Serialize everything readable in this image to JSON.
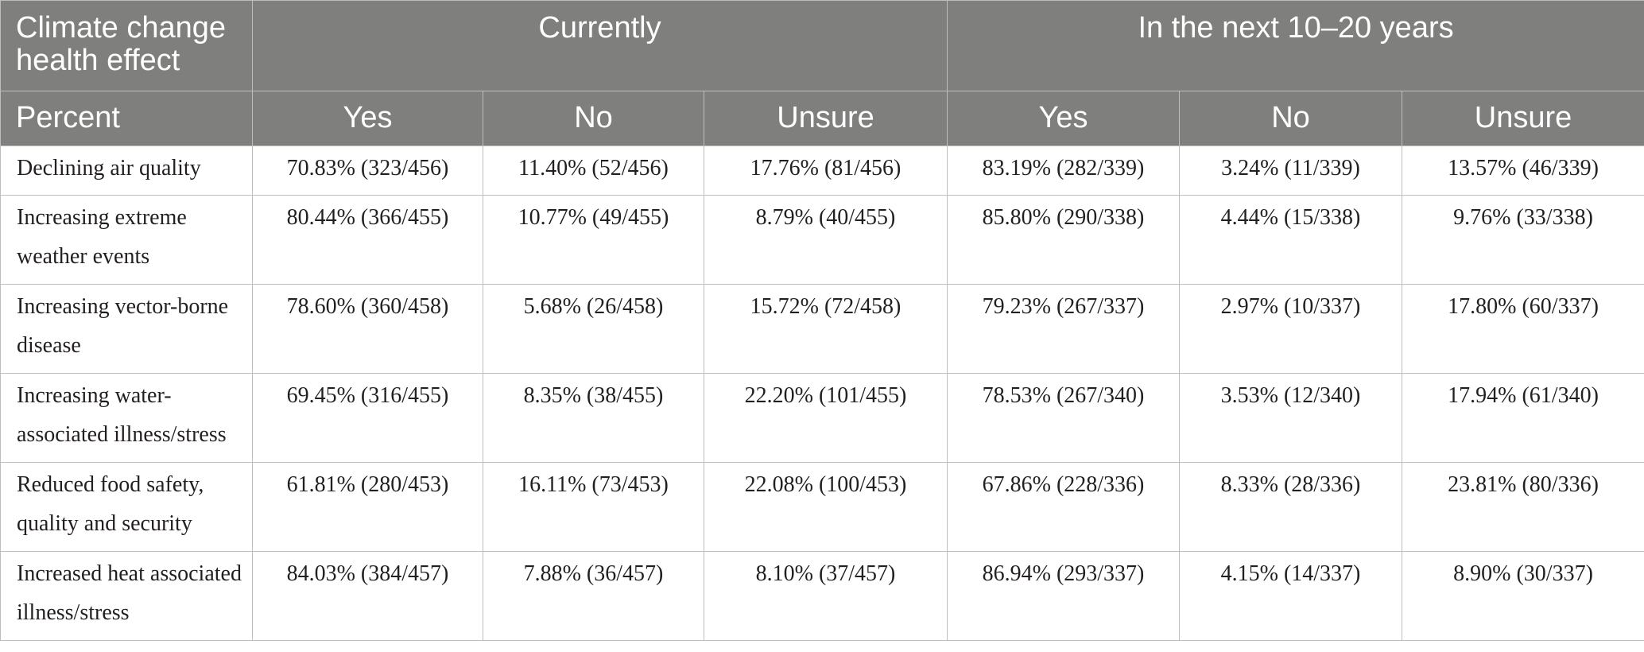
{
  "table": {
    "header_effect": "Climate change health effect",
    "header_percent": "Percent",
    "group_current": "Currently",
    "group_future": "In the next 10–20 years",
    "sub_yes_current": "Yes",
    "sub_no_current": "No",
    "sub_unsure_current": "Unsure",
    "sub_yes_future": "Yes",
    "sub_no_future": "No",
    "sub_unsure_future": "Unsure",
    "rows": [
      {
        "effect": "Declining air quality",
        "current_yes": "70.83% (323/456)",
        "current_no": "11.40% (52/456)",
        "current_unsure": "17.76% (81/456)",
        "future_yes": "83.19% (282/339)",
        "future_no": "3.24% (11/339)",
        "future_unsure": "13.57% (46/339)"
      },
      {
        "effect": "Increasing extreme weather events",
        "current_yes": "80.44% (366/455)",
        "current_no": "10.77% (49/455)",
        "current_unsure": "8.79% (40/455)",
        "future_yes": "85.80% (290/338)",
        "future_no": "4.44% (15/338)",
        "future_unsure": "9.76% (33/338)"
      },
      {
        "effect": "Increasing vector-borne disease",
        "current_yes": "78.60% (360/458)",
        "current_no": "5.68% (26/458)",
        "current_unsure": "15.72% (72/458)",
        "future_yes": "79.23% (267/337)",
        "future_no": "2.97% (10/337)",
        "future_unsure": "17.80% (60/337)"
      },
      {
        "effect": "Increasing water-associated illness/stress",
        "current_yes": "69.45% (316/455)",
        "current_no": "8.35% (38/455)",
        "current_unsure": "22.20% (101/455)",
        "future_yes": "78.53% (267/340)",
        "future_no": "3.53% (12/340)",
        "future_unsure": "17.94% (61/340)"
      },
      {
        "effect": "Reduced food safety, quality and security",
        "current_yes": "61.81% (280/453)",
        "current_no": "16.11% (73/453)",
        "current_unsure": "22.08% (100/453)",
        "future_yes": "67.86% (228/336)",
        "future_no": "8.33% (28/336)",
        "future_unsure": "23.81% (80/336)"
      },
      {
        "effect": "Increased heat associated illness/stress",
        "current_yes": "84.03% (384/457)",
        "current_no": "7.88% (36/457)",
        "current_unsure": "8.10% (37/457)",
        "future_yes": "86.94% (293/337)",
        "future_no": "4.15% (14/337)",
        "future_unsure": "8.90% (30/337)"
      }
    ]
  }
}
